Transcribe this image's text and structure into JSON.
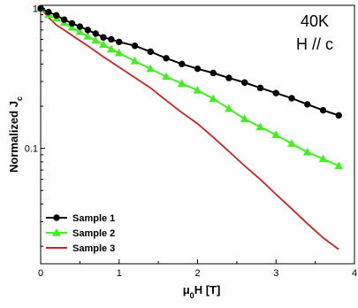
{
  "chart_data": {
    "type": "line",
    "title": "",
    "xlabel": "μ0H [T]",
    "ylabel": "Normalized Jc",
    "xlim": [
      0,
      4
    ],
    "ylim": [
      0.015,
      1.05
    ],
    "yscale": "log",
    "grid": false,
    "legend_position": "bottom-left",
    "x_ticks": [
      "0",
      "1",
      "2",
      "3",
      "4"
    ],
    "y_ticks": [
      {
        "value": 1,
        "label": "1"
      },
      {
        "value": 0.1,
        "label": "0.1"
      }
    ],
    "annotations": [
      "40K",
      "H // c"
    ],
    "series": [
      {
        "name": "Sample 1",
        "color": "#000000",
        "marker": "circle",
        "x": [
          0,
          0.1,
          0.2,
          0.3,
          0.4,
          0.5,
          0.6,
          0.7,
          0.8,
          0.9,
          1.0,
          1.2,
          1.4,
          1.6,
          1.8,
          2.0,
          2.2,
          2.4,
          2.6,
          2.8,
          3.0,
          3.2,
          3.4,
          3.6,
          3.8
        ],
        "y": [
          1.0,
          0.94,
          0.89,
          0.83,
          0.78,
          0.74,
          0.7,
          0.66,
          0.62,
          0.6,
          0.575,
          0.54,
          0.49,
          0.44,
          0.4,
          0.37,
          0.345,
          0.318,
          0.295,
          0.27,
          0.248,
          0.228,
          0.206,
          0.187,
          0.172
        ]
      },
      {
        "name": "Sample 2",
        "color": "#44ee22",
        "marker": "triangle",
        "x": [
          0,
          0.1,
          0.2,
          0.3,
          0.4,
          0.5,
          0.6,
          0.7,
          0.8,
          0.9,
          1.0,
          1.2,
          1.4,
          1.6,
          1.8,
          2.0,
          2.2,
          2.4,
          2.6,
          2.8,
          3.0,
          3.2,
          3.4,
          3.6,
          3.8
        ],
        "y": [
          1.0,
          0.9,
          0.85,
          0.79,
          0.73,
          0.68,
          0.63,
          0.59,
          0.55,
          0.51,
          0.48,
          0.42,
          0.37,
          0.325,
          0.29,
          0.26,
          0.226,
          0.192,
          0.162,
          0.142,
          0.125,
          0.108,
          0.094,
          0.084,
          0.075
        ]
      },
      {
        "name": "Sample 3",
        "color": "#cc2222",
        "marker": "none",
        "x": [
          0,
          0.1,
          0.2,
          0.3,
          0.4,
          0.6,
          0.8,
          1.0,
          1.2,
          1.4,
          1.6,
          1.8,
          2.0,
          2.2,
          2.4,
          2.6,
          2.8,
          3.0,
          3.2,
          3.4,
          3.6,
          3.8
        ],
        "y": [
          1.0,
          0.86,
          0.76,
          0.7,
          0.64,
          0.54,
          0.45,
          0.38,
          0.32,
          0.27,
          0.22,
          0.18,
          0.15,
          0.12,
          0.095,
          0.075,
          0.06,
          0.047,
          0.037,
          0.029,
          0.023,
          0.019
        ]
      }
    ]
  }
}
